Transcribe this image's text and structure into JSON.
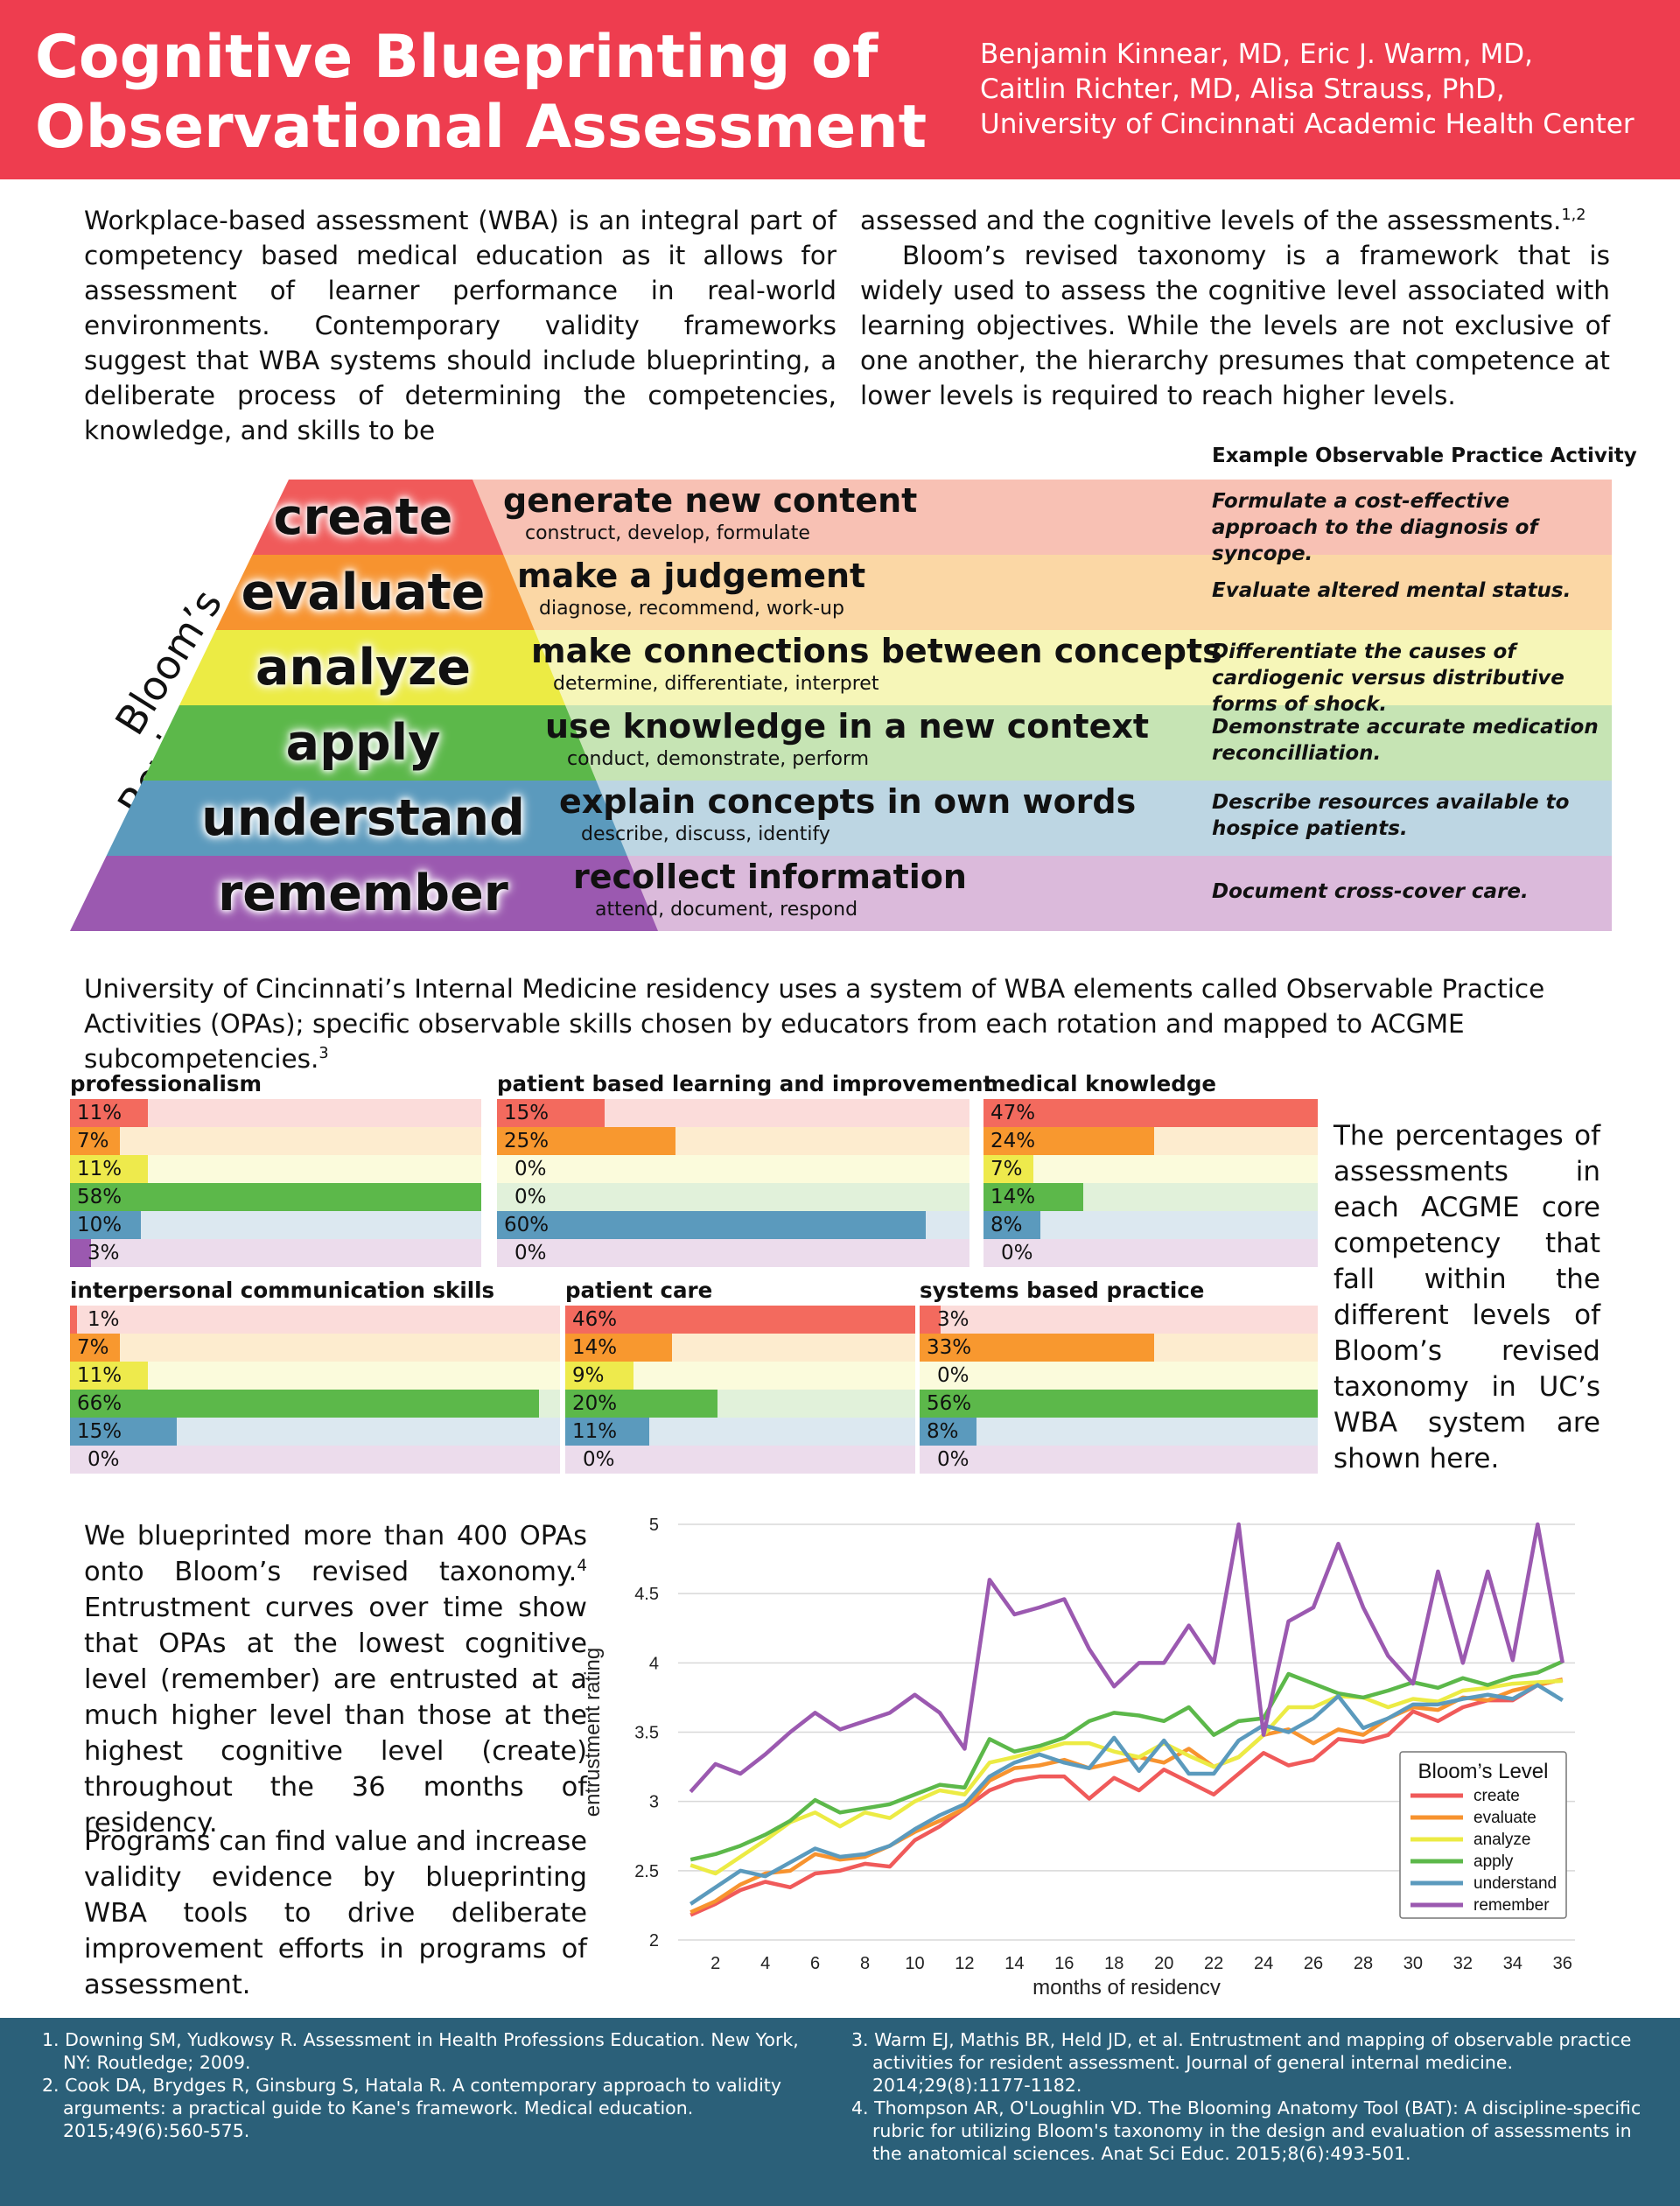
{
  "header": {
    "title_line1": "Cognitive Blueprinting of",
    "title_line2": "Observational Assessment",
    "authors": [
      "Benjamin Kinnear, MD, Eric J. Warm, MD,",
      "Caitlin Richter, MD, Alisa Strauss, PhD,",
      "University of Cincinnati Academic Health Center"
    ],
    "color": "#ee3d4f"
  },
  "intro": {
    "left": "Workplace-based assessment (WBA) is an integral part of competency based medical education as it allows for assessment of learner performance in real-world environments. Contemporary validity frameworks suggest that WBA systems should include blueprinting, a deliberate process of determining the competencies, knowledge, and skills to be",
    "right_p1": "assessed and the cognitive levels of the assessments.",
    "right_p1_sup": "1,2",
    "right_p2": "Bloom’s revised taxonomy is a framework that is widely used to assess the cognitive level associated with learning objectives. While the levels are not exclusive of one another, the hierarchy presumes that competence at lower levels is required to reach higher levels."
  },
  "taxonomy": {
    "label_line1": "Bloom’s",
    "label_line2": "Revised Taxonomy",
    "example_header": "Example Observable Practice Activity",
    "levels": [
      {
        "verb": "create",
        "phrase": "generate new content",
        "sub": "construct, develop, formulate",
        "example": "Formulate a cost-effective approach to the diagnosis of syncope.",
        "color": "#f05a5a",
        "band": "#f8c1b4"
      },
      {
        "verb": "evaluate",
        "phrase": "make a judgement",
        "sub": "diagnose, recommend, work-up",
        "example": "Evaluate altered mental status.",
        "color": "#f7932f",
        "band": "#fbd7a5"
      },
      {
        "verb": "analyze",
        "phrase": "make connections between concepts",
        "sub": "determine, differentiate, interpret",
        "example": "Differentiate the causes of cardiogenic versus distributive forms of shock.",
        "color": "#eceb44",
        "band": "#f6f6b8"
      },
      {
        "verb": "apply",
        "phrase": "use knowledge in a new context",
        "sub": "conduct, demonstrate, perform",
        "example": "Demonstrate accurate medication reconcilliation.",
        "color": "#5cb84a",
        "band": "#c6e4b4"
      },
      {
        "verb": "understand",
        "phrase": "explain concepts in own words",
        "sub": "describe, discuss, identify",
        "example": "Describe resources available to hospice patients.",
        "color": "#5b9abd",
        "band": "#bdd6e3"
      },
      {
        "verb": "remember",
        "phrase": "recollect information",
        "sub": "attend, document, respond",
        "example": "Document cross-cover care.",
        "color": "#9b59b0",
        "band": "#dbbadb"
      }
    ]
  },
  "opa_text": "University of Cincinnati’s Internal Medicine residency uses a system of WBA elements called Observable Practice Activities (OPAs); specific observable skills chosen by educators from each rotation and mapped to ACGME subcompetencies.",
  "opa_sup": "3",
  "competencies": [
    {
      "name": "professionalism",
      "values": [
        11,
        7,
        11,
        58,
        10,
        3
      ],
      "labels": [
        "11%",
        "7%",
        "11%",
        "58%",
        "10%",
        "3%"
      ]
    },
    {
      "name": "patient based learning and improvement",
      "values": [
        15,
        25,
        0,
        0,
        60,
        0
      ],
      "labels": [
        "15%",
        "25%",
        "0%",
        "0%",
        "60%",
        "0%"
      ]
    },
    {
      "name": "medical knowledge",
      "values": [
        47,
        24,
        7,
        14,
        8,
        0
      ],
      "labels": [
        "47%",
        "24%",
        "7%",
        "14%",
        "8%",
        "0%"
      ]
    },
    {
      "name": "interpersonal communication skills",
      "values": [
        1,
        7,
        11,
        66,
        15,
        0
      ],
      "labels": [
        "1%",
        "7%",
        "11%",
        "66%",
        "15%",
        "0%"
      ]
    },
    {
      "name": "patient care",
      "values": [
        46,
        14,
        9,
        20,
        11,
        0
      ],
      "labels": [
        "46%",
        "14%",
        "9%",
        "20%",
        "11%",
        "0%"
      ]
    },
    {
      "name": "systems based practice",
      "values": [
        3,
        33,
        0,
        56,
        8,
        0
      ],
      "labels": [
        "3%",
        "33%",
        "0%",
        "56%",
        "8%",
        "0%"
      ]
    }
  ],
  "bar_colors": [
    "#f36a5e",
    "#f8982f",
    "#eeea4c",
    "#5cb84a",
    "#5b9abd",
    "#9b59b0"
  ],
  "band_colors": [
    "#fbdcda",
    "#fdeccf",
    "#fbfbdc",
    "#e1f1da",
    "#dce8f0",
    "#ecdcec"
  ],
  "side_text": "The percentages of assessments in each ACGME core competency that fall within the different levels of Bloom’s revised taxonomy in UC’s WBA system are shown here.",
  "body_p1": "We blueprinted more than 400 OPAs onto Bloom’s revised taxonomy.",
  "body_p1_sup": "4",
  "body_p1b": "Entrustment curves over time show that OPAs at the lowest cognitive level (remember) are entrusted at a much higher level than those at the highest cognitive level (create) throughout the 36 months of residency.",
  "body_p2": "Programs can find value and increase validity evidence by blueprinting WBA tools to drive deliberate improvement efforts in programs of assessment.",
  "chart_data": {
    "type": "line",
    "xlabel": "months of residency",
    "ylabel": "entrustment rating",
    "ylim": [
      2,
      5
    ],
    "xlim": [
      0.5,
      36.5
    ],
    "grid": true,
    "legend_title": "Bloom’s Level",
    "legend_position": "lower-right",
    "x": [
      1,
      2,
      3,
      4,
      5,
      6,
      7,
      8,
      9,
      10,
      11,
      12,
      13,
      14,
      15,
      16,
      17,
      18,
      19,
      20,
      21,
      22,
      23,
      24,
      25,
      26,
      27,
      28,
      29,
      30,
      31,
      32,
      33,
      34,
      35,
      36
    ],
    "x_ticks": [
      "2",
      "4",
      "6",
      "8",
      "10",
      "12",
      "14",
      "16",
      "18",
      "20",
      "22",
      "24",
      "26",
      "28",
      "30",
      "32",
      "34",
      "36"
    ],
    "y_ticks": [
      "2",
      "2.5",
      "3",
      "3.5",
      "4",
      "4.5",
      "5"
    ],
    "series": [
      {
        "name": "create",
        "color": "#f05a5a",
        "values": [
          2.18,
          2.26,
          2.36,
          2.42,
          2.38,
          2.48,
          2.5,
          2.55,
          2.53,
          2.72,
          2.82,
          2.95,
          3.08,
          3.15,
          3.18,
          3.18,
          3.02,
          3.17,
          3.08,
          3.23,
          3.14,
          3.05,
          3.2,
          3.35,
          3.26,
          3.3,
          3.45,
          3.43,
          3.48,
          3.65,
          3.58,
          3.68,
          3.73,
          3.73,
          3.84,
          3.88
        ]
      },
      {
        "name": "evaluate",
        "color": "#f7932f",
        "values": [
          2.2,
          2.28,
          2.4,
          2.48,
          2.5,
          2.62,
          2.58,
          2.6,
          2.68,
          2.78,
          2.86,
          2.95,
          3.15,
          3.24,
          3.26,
          3.3,
          3.24,
          3.28,
          3.32,
          3.28,
          3.38,
          3.25,
          3.32,
          3.48,
          3.52,
          3.42,
          3.52,
          3.48,
          3.6,
          3.68,
          3.66,
          3.75,
          3.73,
          3.8,
          3.84,
          3.88
        ]
      },
      {
        "name": "analyze",
        "color": "#eceb44",
        "values": [
          2.54,
          2.48,
          2.6,
          2.72,
          2.85,
          2.92,
          2.82,
          2.92,
          2.88,
          3.0,
          3.08,
          3.05,
          3.28,
          3.32,
          3.37,
          3.42,
          3.42,
          3.36,
          3.32,
          3.42,
          3.33,
          3.25,
          3.32,
          3.48,
          3.68,
          3.68,
          3.76,
          3.75,
          3.68,
          3.74,
          3.72,
          3.8,
          3.82,
          3.85,
          3.86,
          3.87
        ]
      },
      {
        "name": "apply",
        "color": "#5cb84a",
        "values": [
          2.58,
          2.62,
          2.68,
          2.76,
          2.86,
          3.01,
          2.92,
          2.95,
          2.98,
          3.05,
          3.12,
          3.1,
          3.45,
          3.36,
          3.4,
          3.46,
          3.58,
          3.64,
          3.62,
          3.58,
          3.68,
          3.48,
          3.58,
          3.6,
          3.92,
          3.85,
          3.78,
          3.75,
          3.8,
          3.86,
          3.82,
          3.89,
          3.84,
          3.9,
          3.93,
          4.01
        ]
      },
      {
        "name": "understand",
        "color": "#5b9abd",
        "values": [
          2.26,
          2.38,
          2.5,
          2.46,
          2.56,
          2.66,
          2.6,
          2.62,
          2.68,
          2.8,
          2.9,
          2.98,
          3.18,
          3.28,
          3.34,
          3.28,
          3.24,
          3.46,
          3.22,
          3.44,
          3.2,
          3.2,
          3.44,
          3.55,
          3.5,
          3.6,
          3.76,
          3.53,
          3.6,
          3.7,
          3.7,
          3.74,
          3.77,
          3.74,
          3.84,
          3.73
        ]
      },
      {
        "name": "remember",
        "color": "#9b59b0",
        "values": [
          3.07,
          3.27,
          3.2,
          3.34,
          3.5,
          3.64,
          3.52,
          3.58,
          3.64,
          3.77,
          3.64,
          3.38,
          4.6,
          4.35,
          4.4,
          4.46,
          4.1,
          3.83,
          4.0,
          4.0,
          4.27,
          4.0,
          5.0,
          3.48,
          4.3,
          4.4,
          4.86,
          4.4,
          4.05,
          3.85,
          4.66,
          4.0,
          4.66,
          4.02,
          5.0,
          4.0
        ]
      }
    ]
  },
  "references": [
    "1. Downing SM, Yudkowsy R. Assessment in Health Professions Education. New York, NY: Routledge; 2009.",
    "2. Cook DA, Brydges R, Ginsburg S, Hatala R. A contemporary approach to validity arguments: a practical guide to Kane's framework. Medical education. 2015;49(6):560-575.",
    "3. Warm EJ, Mathis BR, Held JD, et al. Entrustment and mapping of observable practice activities for resident assessment. Journal of general internal medicine. 2014;29(8):1177-1182.",
    "4. Thompson AR, O'Loughlin VD. The Blooming Anatomy Tool (BAT): A discipline-specific rubric for utilizing Bloom's taxonomy in the design and evaluation of assessments in the anatomical sciences. Anat Sci Educ. 2015;8(6):493-501."
  ]
}
